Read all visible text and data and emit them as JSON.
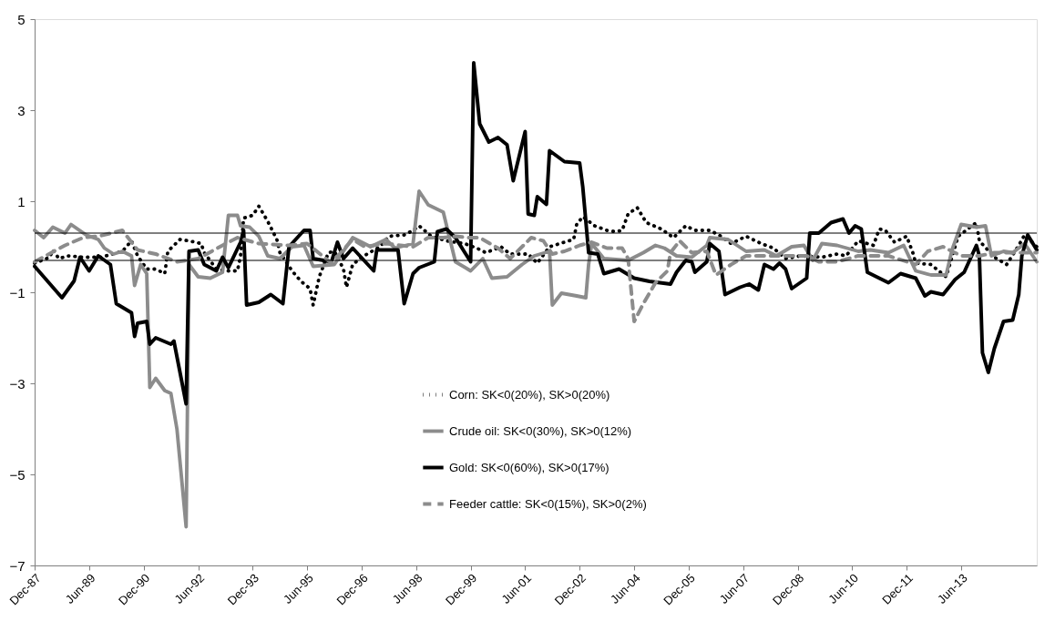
{
  "chart_data": {
    "type": "line",
    "ylim": [
      -7,
      5
    ],
    "yticks": [
      -7,
      -5,
      -3,
      -1,
      1,
      3,
      5
    ],
    "xlim": [
      "1987-12",
      "2015-07"
    ],
    "xticks": [
      {
        "value": "1987-12",
        "label": "Dec-87"
      },
      {
        "value": "1989-06",
        "label": "Jun-89"
      },
      {
        "value": "1990-12",
        "label": "Dec-90"
      },
      {
        "value": "1992-06",
        "label": "Jun-92"
      },
      {
        "value": "1993-12",
        "label": "Dec-93"
      },
      {
        "value": "1995-06",
        "label": "Jun-95"
      },
      {
        "value": "1996-12",
        "label": "Dec-96"
      },
      {
        "value": "1998-06",
        "label": "Jun-98"
      },
      {
        "value": "1999-12",
        "label": "Dec-99"
      },
      {
        "value": "2001-06",
        "label": "Jun-01"
      },
      {
        "value": "2002-12",
        "label": "Dec-02"
      },
      {
        "value": "2004-06",
        "label": "Jun-04"
      },
      {
        "value": "2005-12",
        "label": "Dec-05"
      },
      {
        "value": "2007-06",
        "label": "Jun-07"
      },
      {
        "value": "2008-12",
        "label": "Dec-08"
      },
      {
        "value": "2010-06",
        "label": "Jun-10"
      },
      {
        "value": "2011-12",
        "label": "Dec-11"
      },
      {
        "value": "2013-06",
        "label": "Jun-13"
      }
    ],
    "grid": false,
    "legend": "bottom",
    "marker": "none",
    "ref_lines": [
      {
        "axis": "y",
        "value": 0.3,
        "color": "#000000"
      },
      {
        "axis": "y",
        "value": -0.3,
        "color": "#000000"
      }
    ],
    "series": [
      {
        "name": "Corn: SK<0(20%), SK>0(20%)",
        "color": "#000000",
        "line_style": "dotted",
        "x": [
          "1987-12",
          "1988-05",
          "1988-06",
          "1988-08",
          "1988-11",
          "1989-04",
          "1989-10",
          "1990-05",
          "1990-08",
          "1990-10",
          "1991-01",
          "1991-04",
          "1991-07",
          "1991-08",
          "1991-12",
          "1992-03",
          "1992-07",
          "1992-08",
          "1992-12",
          "1993-04",
          "1993-07",
          "1993-08",
          "1993-09",
          "1993-12",
          "1994-02",
          "1994-05",
          "1994-08",
          "1994-09",
          "1995-01",
          "1995-04",
          "1995-07",
          "1995-08",
          "1995-10",
          "1996-01",
          "1996-03",
          "1996-06",
          "1996-07",
          "1996-09",
          "1996-12",
          "1997-06",
          "1997-09",
          "1998-02",
          "1998-05",
          "1998-07",
          "1998-11",
          "1999-04",
          "1999-10",
          "2000-02",
          "2000-05",
          "2000-10",
          "2001-01",
          "2001-07",
          "2001-10",
          "2002-02",
          "2002-07",
          "2002-10",
          "2002-11",
          "2003-01",
          "2003-05",
          "2003-09",
          "2003-12",
          "2004-02",
          "2004-04",
          "2004-07",
          "2004-10",
          "2005-03",
          "2005-07",
          "2005-11",
          "2006-02",
          "2006-07",
          "2006-10",
          "2007-02",
          "2007-07",
          "2007-12",
          "2008-04",
          "2008-08",
          "2009-01",
          "2009-08",
          "2010-01",
          "2010-04",
          "2010-08",
          "2011-01",
          "2011-03",
          "2011-05",
          "2011-08",
          "2011-12",
          "2012-02",
          "2012-03",
          "2012-08",
          "2013-01",
          "2013-05",
          "2013-11",
          "2013-12",
          "2014-05",
          "2014-09",
          "2015-01",
          "2015-03",
          "2015-07"
        ],
        "values": [
          -0.36,
          -0.23,
          -0.07,
          -0.26,
          -0.2,
          -0.23,
          -0.23,
          -0.1,
          0.13,
          -0.2,
          -0.49,
          -0.49,
          -0.59,
          -0.1,
          0.16,
          0.13,
          0.07,
          -0.13,
          -0.49,
          -0.53,
          -0.53,
          -0.2,
          0.63,
          0.69,
          0.89,
          0.56,
          0.16,
          -0.13,
          -0.53,
          -0.76,
          -0.92,
          -1.28,
          -0.66,
          -0.13,
          -0.1,
          -0.49,
          -0.89,
          -0.39,
          -0.23,
          0.0,
          0.23,
          0.26,
          0.36,
          0.46,
          0.23,
          0.13,
          0.07,
          -0.03,
          -0.13,
          0.0,
          -0.16,
          -0.16,
          -0.36,
          0.0,
          0.1,
          0.16,
          0.49,
          0.66,
          0.46,
          0.36,
          0.33,
          0.36,
          0.72,
          0.86,
          0.53,
          0.39,
          0.2,
          0.46,
          0.36,
          0.36,
          0.26,
          0.07,
          0.23,
          0.07,
          -0.03,
          -0.26,
          -0.2,
          -0.23,
          -0.16,
          -0.2,
          0.13,
          0.03,
          0.39,
          0.36,
          0.1,
          0.23,
          -0.13,
          -0.36,
          -0.39,
          -0.66,
          0.23,
          0.53,
          0.13,
          -0.23,
          -0.39,
          0.03,
          0.26,
          0.0
        ]
      },
      {
        "name": "Crude oil: SK<0(30%), SK>0(12%)",
        "color": "#8c8c8c",
        "line_style": "solid",
        "x": [
          "1987-12",
          "1988-03",
          "1988-06",
          "1988-10",
          "1988-12",
          "1989-05",
          "1989-09",
          "1989-11",
          "1990-02",
          "1990-05",
          "1990-08",
          "1990-09",
          "1990-11",
          "1991-01",
          "1991-02",
          "1991-04",
          "1991-07",
          "1991-09",
          "1991-11",
          "1992-02",
          "1992-03",
          "1992-06",
          "1992-10",
          "1993-02",
          "1993-04",
          "1993-07",
          "1993-08",
          "1993-11",
          "1994-02",
          "1994-05",
          "1994-09",
          "1995-01",
          "1995-05",
          "1995-08",
          "1996-03",
          "1996-09",
          "1997-03",
          "1997-08",
          "1997-11",
          "1998-05",
          "1998-07",
          "1998-10",
          "1999-03",
          "1999-07",
          "1999-12",
          "2000-04",
          "2000-07",
          "2000-12",
          "2001-05",
          "2001-09",
          "2002-02",
          "2002-03",
          "2002-06",
          "2002-11",
          "2003-02",
          "2003-03",
          "2003-04",
          "2003-08",
          "2004-04",
          "2004-09",
          "2005-01",
          "2005-04",
          "2005-08",
          "2006-01",
          "2006-06",
          "2006-07",
          "2007-01",
          "2007-07",
          "2008-01",
          "2008-05",
          "2008-10",
          "2009-02",
          "2009-05",
          "2009-08",
          "2010-01",
          "2010-08",
          "2010-12",
          "2011-06",
          "2011-11",
          "2012-03",
          "2012-08",
          "2013-01",
          "2013-03",
          "2013-06",
          "2013-11",
          "2014-02",
          "2014-04",
          "2014-08",
          "2014-11",
          "2015-03",
          "2015-07"
        ],
        "values": [
          0.36,
          0.2,
          0.43,
          0.3,
          0.49,
          0.26,
          0.16,
          -0.03,
          -0.16,
          -0.1,
          -0.2,
          -0.85,
          -0.39,
          -0.59,
          -3.09,
          -2.89,
          -3.16,
          -3.22,
          -4.01,
          -6.15,
          -0.39,
          -0.66,
          -0.69,
          -0.56,
          0.69,
          0.69,
          0.46,
          0.43,
          0.23,
          -0.2,
          -0.26,
          0.0,
          0.03,
          -0.43,
          -0.39,
          0.2,
          0.0,
          0.16,
          -0.03,
          0.07,
          1.22,
          0.92,
          0.76,
          -0.33,
          -0.53,
          -0.26,
          -0.69,
          -0.66,
          -0.39,
          -0.2,
          -0.1,
          -1.28,
          -1.02,
          -1.08,
          -1.12,
          -0.39,
          0.07,
          -0.26,
          -0.3,
          -0.13,
          0.03,
          -0.03,
          -0.2,
          -0.23,
          0.03,
          0.2,
          0.16,
          -0.1,
          -0.07,
          -0.2,
          0.0,
          0.03,
          -0.3,
          0.07,
          0.03,
          -0.1,
          -0.07,
          -0.13,
          0.03,
          -0.53,
          -0.62,
          -0.62,
          -0.07,
          0.49,
          0.43,
          0.46,
          -0.2,
          -0.1,
          -0.13,
          0.07,
          -0.33
        ]
      },
      {
        "name": "Gold: SK<0(60%), SK>0(17%)",
        "color": "#000000",
        "line_style": "solid",
        "x": [
          "1987-12",
          "1988-09",
          "1989-01",
          "1989-03",
          "1989-06",
          "1989-09",
          "1990-01",
          "1990-03",
          "1990-08",
          "1990-09",
          "1990-10",
          "1991-01",
          "1991-02",
          "1991-04",
          "1991-09",
          "1991-10",
          "1992-02",
          "1992-03",
          "1992-06",
          "1992-08",
          "1992-12",
          "1993-02",
          "1993-04",
          "1993-08",
          "1993-09",
          "1993-10",
          "1994-02",
          "1994-06",
          "1994-10",
          "1994-12",
          "1995-05",
          "1995-07",
          "1995-08",
          "1996-02",
          "1996-04",
          "1996-06",
          "1996-09",
          "1997-04",
          "1997-05",
          "1997-12",
          "1998-02",
          "1998-05",
          "1998-07",
          "1998-12",
          "1999-01",
          "1999-04",
          "1999-07",
          "1999-12",
          "2000-01",
          "2000-03",
          "2000-06",
          "2000-09",
          "2000-12",
          "2001-02",
          "2001-06",
          "2001-07",
          "2001-09",
          "2001-10",
          "2002-01",
          "2002-02",
          "2002-07",
          "2002-12",
          "2003-01",
          "2003-03",
          "2003-06",
          "2003-08",
          "2004-01",
          "2004-06",
          "2004-11",
          "2005-06",
          "2005-08",
          "2005-11",
          "2006-01",
          "2006-02",
          "2006-06",
          "2006-07",
          "2006-10",
          "2006-12",
          "2007-05",
          "2007-08",
          "2007-11",
          "2008-01",
          "2008-04",
          "2008-06",
          "2008-08",
          "2008-10",
          "2009-03",
          "2009-04",
          "2009-07",
          "2009-11",
          "2010-03",
          "2010-05",
          "2010-07",
          "2010-09",
          "2010-11",
          "2011-02",
          "2011-06",
          "2011-10",
          "2012-03",
          "2012-06",
          "2012-08",
          "2012-12",
          "2013-04",
          "2013-07",
          "2013-11",
          "2013-12",
          "2014-01",
          "2014-03",
          "2014-05",
          "2014-08",
          "2014-11",
          "2015-01",
          "2015-02",
          "2015-04",
          "2015-07"
        ],
        "values": [
          -0.43,
          -1.12,
          -0.75,
          -0.23,
          -0.53,
          -0.2,
          -0.39,
          -1.25,
          -1.45,
          -1.97,
          -1.68,
          -1.64,
          -2.14,
          -2.0,
          -2.14,
          -2.07,
          -3.45,
          -0.1,
          -0.07,
          -0.39,
          -0.53,
          -0.23,
          -0.46,
          0.1,
          0.36,
          -1.28,
          -1.22,
          -1.05,
          -1.25,
          0.0,
          0.36,
          0.36,
          -0.26,
          -0.33,
          0.1,
          -0.26,
          -0.03,
          -0.53,
          -0.07,
          -0.07,
          -1.25,
          -0.59,
          -0.46,
          -0.33,
          0.33,
          0.39,
          0.2,
          -0.33,
          4.04,
          2.7,
          2.3,
          2.4,
          2.24,
          1.45,
          2.53,
          0.72,
          0.69,
          1.1,
          0.93,
          2.11,
          1.87,
          1.84,
          1.32,
          -0.13,
          -0.16,
          -0.59,
          -0.49,
          -0.69,
          -0.76,
          -0.82,
          -0.56,
          -0.3,
          -0.33,
          -0.56,
          -0.33,
          0.07,
          -0.1,
          -1.05,
          -0.89,
          -0.82,
          -0.95,
          -0.39,
          -0.49,
          -0.36,
          -0.49,
          -0.92,
          -0.69,
          0.3,
          0.3,
          0.53,
          0.61,
          0.3,
          0.46,
          0.39,
          -0.56,
          -0.66,
          -0.79,
          -0.59,
          -0.69,
          -1.08,
          -0.99,
          -1.05,
          -0.72,
          -0.56,
          0.03,
          -0.2,
          -2.33,
          -2.76,
          -2.23,
          -1.64,
          -1.61,
          -1.05,
          -0.2,
          0.26,
          -0.07
        ]
      },
      {
        "name": "Feeder cattle: SK<0(15%), SK>0(2%)",
        "color": "#8c8c8c",
        "line_style": "dashed",
        "x": [
          "1987-12",
          "1988-10",
          "1989-04",
          "1989-09",
          "1990-05",
          "1990-10",
          "1991-04",
          "1991-11",
          "1992-06",
          "1993-02",
          "1993-07",
          "1994-02",
          "1994-12",
          "1995-06",
          "1996-02",
          "1996-09",
          "1997-01",
          "1997-08",
          "1998-05",
          "1998-10",
          "1999-03",
          "1999-07",
          "1999-11",
          "2000-03",
          "2000-09",
          "2001-01",
          "2001-08",
          "2001-12",
          "2002-03",
          "2002-07",
          "2002-12",
          "2003-04",
          "2003-09",
          "2004-02",
          "2004-04",
          "2004-06",
          "2004-09",
          "2005-01",
          "2005-05",
          "2005-06",
          "2005-09",
          "2006-01",
          "2006-06",
          "2006-09",
          "2007-02",
          "2007-07",
          "2008-05",
          "2009-03",
          "2009-07",
          "2010-01",
          "2010-08",
          "2011-06",
          "2012-03",
          "2012-07",
          "2012-12",
          "2013-06",
          "2013-12",
          "2014-05",
          "2014-11",
          "2015-07"
        ],
        "values": [
          -0.33,
          0.03,
          0.2,
          0.23,
          0.36,
          -0.07,
          -0.16,
          -0.33,
          -0.26,
          0.03,
          0.2,
          0.07,
          0.03,
          0.07,
          -0.36,
          0.16,
          0.0,
          0.07,
          0.0,
          0.2,
          0.2,
          0.23,
          0.2,
          0.2,
          -0.03,
          -0.26,
          0.2,
          0.13,
          -0.16,
          -0.1,
          0.03,
          0.1,
          -0.03,
          -0.03,
          -0.26,
          -1.64,
          -1.25,
          -0.79,
          -0.53,
          -0.13,
          0.13,
          -0.13,
          -0.1,
          -0.62,
          -0.39,
          -0.2,
          -0.2,
          -0.2,
          -0.33,
          -0.33,
          -0.2,
          -0.2,
          -0.39,
          -0.1,
          0.0,
          -0.2,
          -0.2,
          -0.13,
          -0.13,
          -0.13
        ]
      }
    ]
  }
}
